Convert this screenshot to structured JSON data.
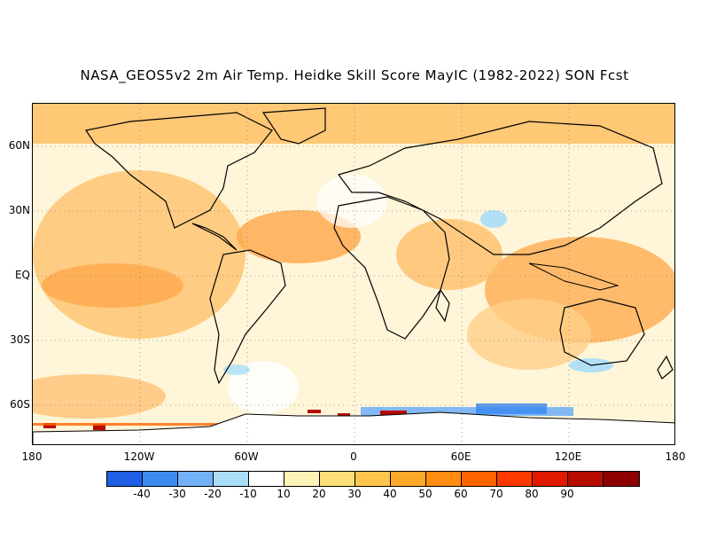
{
  "title": "NASA_GEOS5v2 2m Air Temp. Heidke Skill Score MayIC (1982-2022) SON Fcst",
  "map": {
    "lat_labels": [
      "60N",
      "30N",
      "EQ",
      "30S",
      "60S"
    ],
    "lon_labels": [
      "180",
      "120W",
      "60W",
      "0",
      "60E",
      "120E",
      "180"
    ],
    "background_color": "#fff5d8",
    "land_outline_color": "#000000"
  },
  "colorbar": {
    "colors": [
      "#1f5fe6",
      "#3d8bf0",
      "#74b2f7",
      "#a9def8",
      "#ffffff",
      "#fff3b8",
      "#ffe07a",
      "#ffc64c",
      "#ffa928",
      "#ff8c10",
      "#ff6400",
      "#ff3a00",
      "#e01a00",
      "#b80b00",
      "#8c0000"
    ],
    "labels": [
      "-40",
      "-30",
      "-20",
      "-10",
      "10",
      "20",
      "30",
      "40",
      "50",
      "60",
      "70",
      "80",
      "90"
    ]
  }
}
